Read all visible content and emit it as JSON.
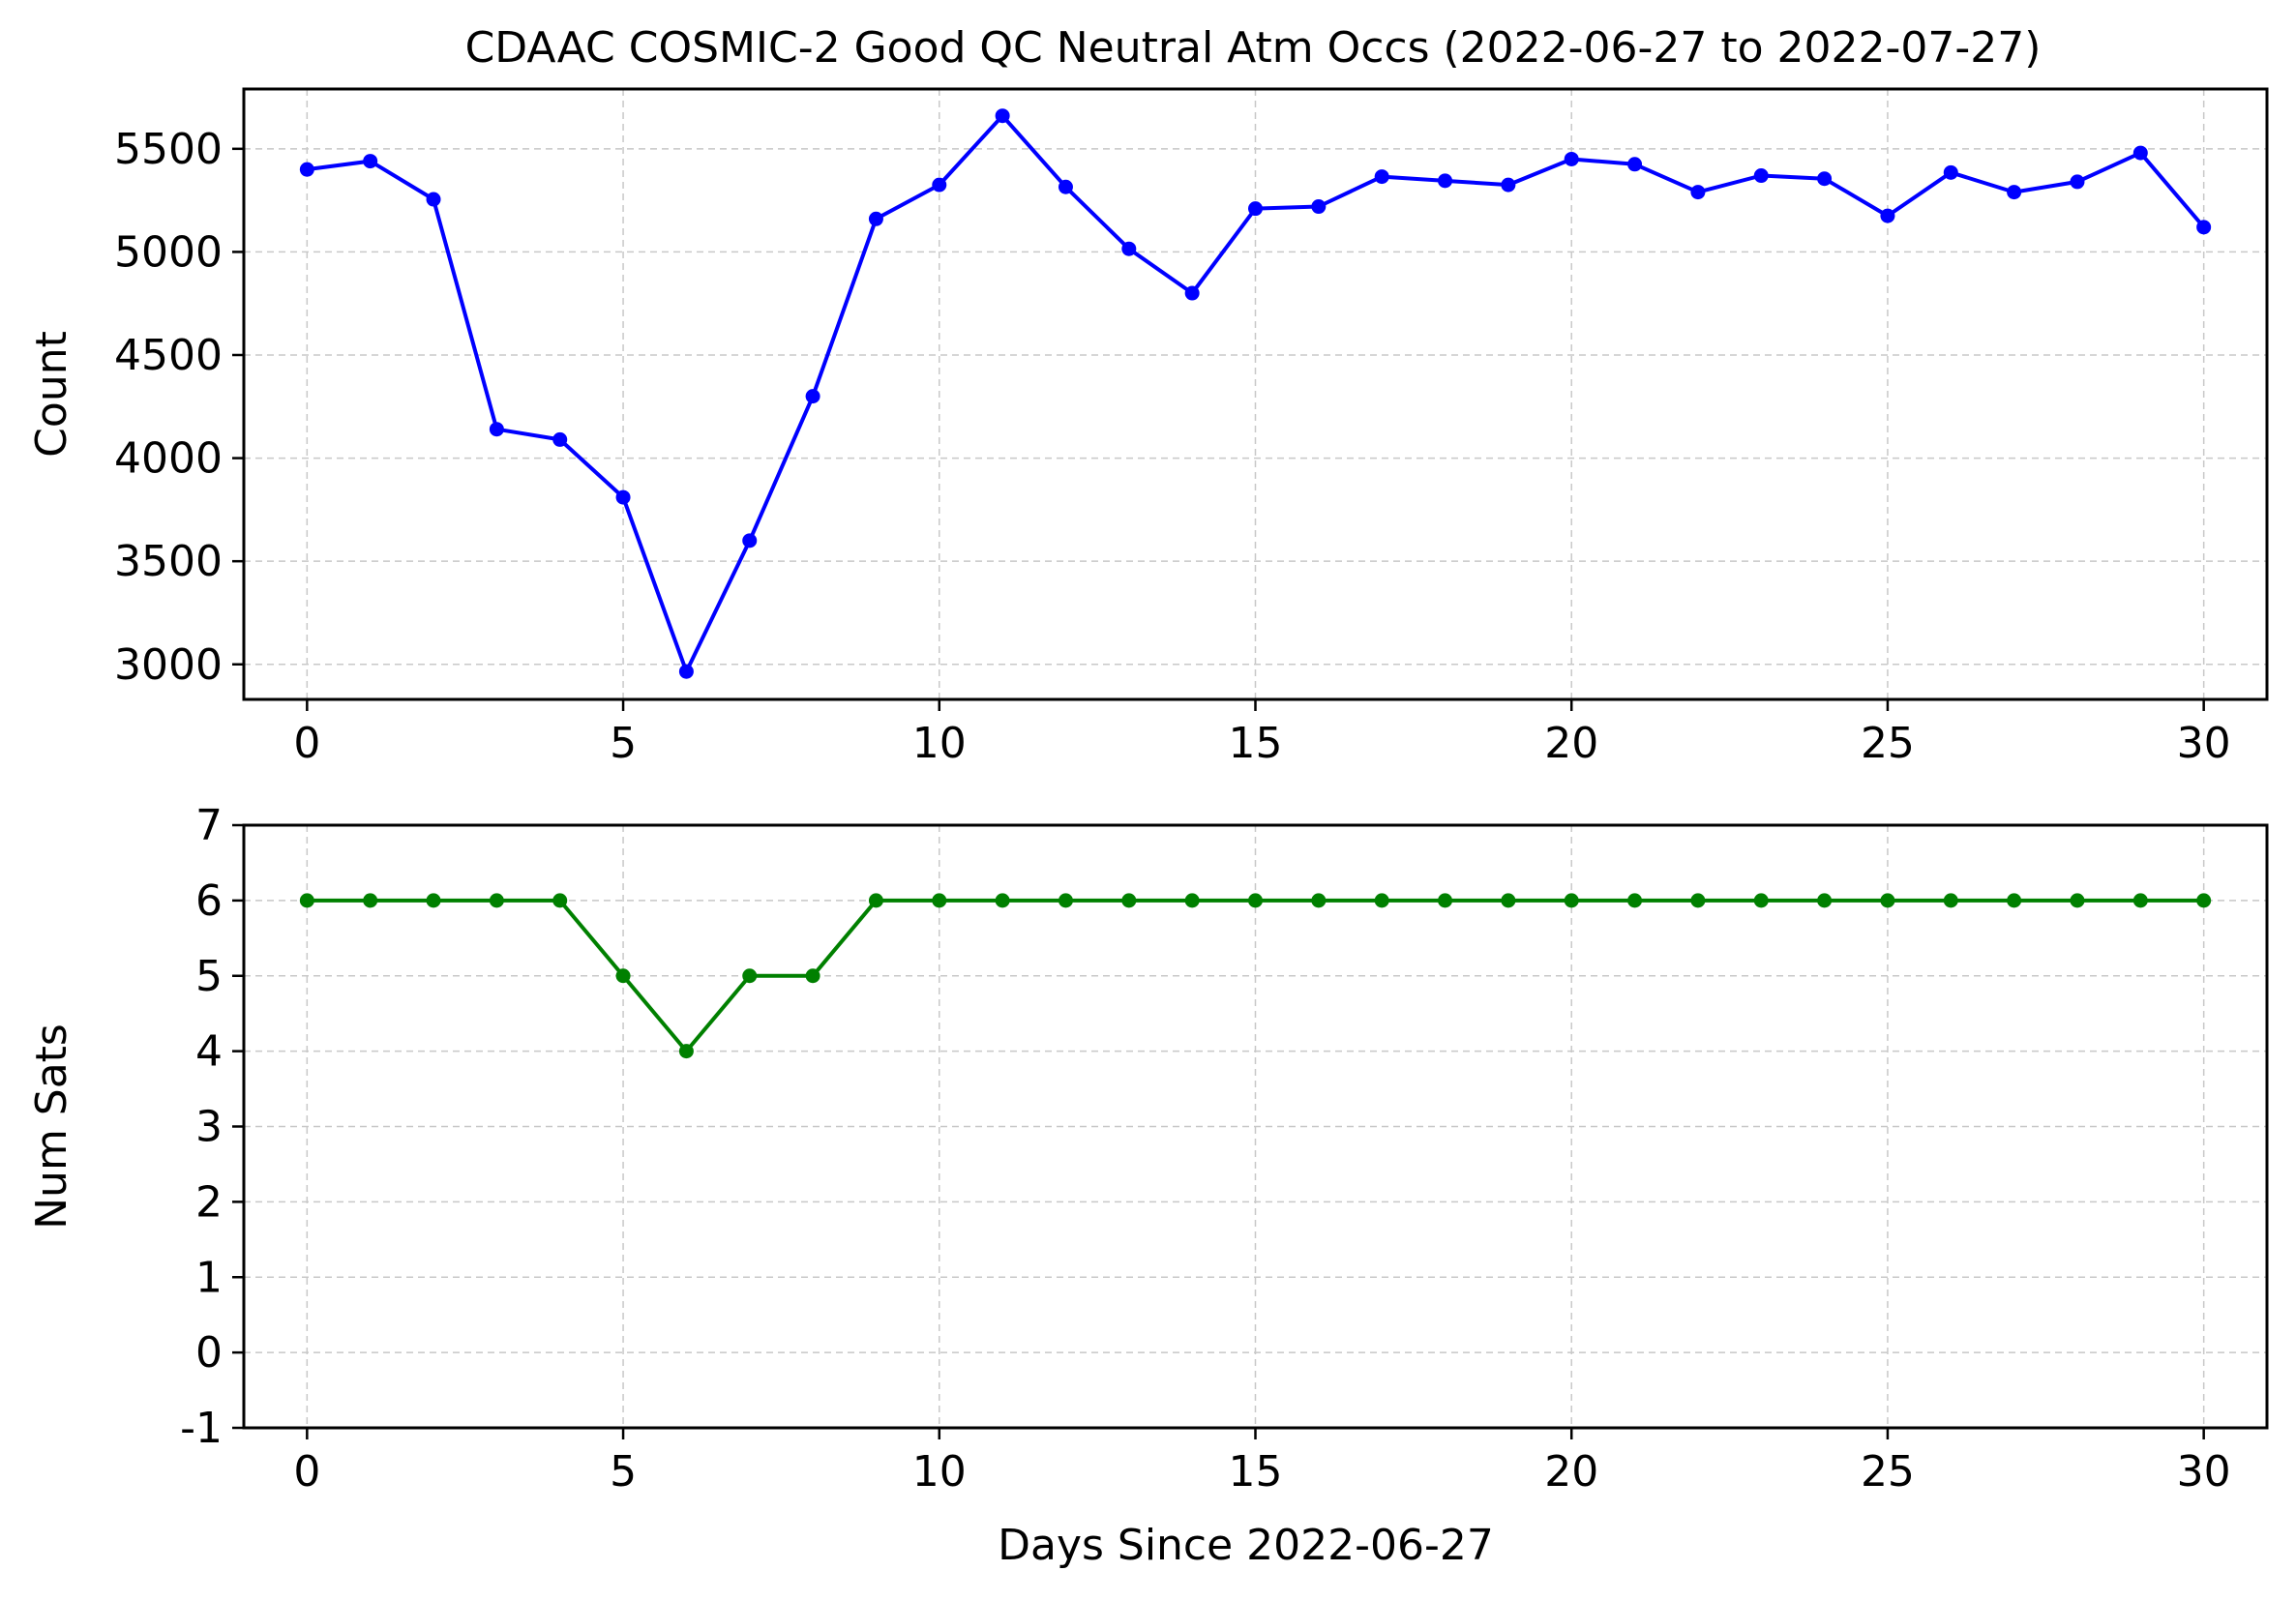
{
  "chart_data": [
    {
      "type": "line",
      "title": "CDAAC COSMIC-2 Good QC Neutral Atm Occs (2022-06-27 to 2022-07-27)",
      "xlabel": "",
      "ylabel": "Count",
      "xlim": [
        -1,
        31
      ],
      "ylim": [
        2830,
        5790
      ],
      "x_ticks": [
        0,
        5,
        10,
        15,
        20,
        25,
        30
      ],
      "y_ticks": [
        3000,
        3500,
        4000,
        4500,
        5000,
        5500
      ],
      "grid": true,
      "color": "#0000ff",
      "marker": "circle",
      "series": [
        {
          "x": [
            0,
            1,
            2,
            3,
            4,
            5,
            6,
            7,
            8,
            9,
            10,
            11,
            12,
            13,
            14,
            15,
            16,
            17,
            18,
            19,
            20,
            21,
            22,
            23,
            24,
            25,
            26,
            27,
            28,
            29,
            30
          ],
          "values": [
            5400,
            5440,
            5255,
            4140,
            4090,
            3810,
            2965,
            3600,
            4300,
            5160,
            5325,
            5660,
            5315,
            5015,
            4800,
            5210,
            5220,
            5365,
            5345,
            5325,
            5450,
            5425,
            5290,
            5370,
            5355,
            5175,
            5385,
            5290,
            5340,
            5480,
            5120
          ]
        }
      ]
    },
    {
      "type": "line",
      "title": "",
      "xlabel": "Days Since 2022-06-27",
      "ylabel": "Num Sats",
      "xlim": [
        -1,
        31
      ],
      "ylim": [
        -1,
        7
      ],
      "x_ticks": [
        0,
        5,
        10,
        15,
        20,
        25,
        30
      ],
      "y_ticks": [
        -1,
        0,
        1,
        2,
        3,
        4,
        5,
        6,
        7
      ],
      "grid": true,
      "color": "#008000",
      "marker": "circle",
      "series": [
        {
          "x": [
            0,
            1,
            2,
            3,
            4,
            5,
            6,
            7,
            8,
            9,
            10,
            11,
            12,
            13,
            14,
            15,
            16,
            17,
            18,
            19,
            20,
            21,
            22,
            23,
            24,
            25,
            26,
            27,
            28,
            29,
            30
          ],
          "values": [
            6,
            6,
            6,
            6,
            6,
            5,
            4,
            5,
            5,
            6,
            6,
            6,
            6,
            6,
            6,
            6,
            6,
            6,
            6,
            6,
            6,
            6,
            6,
            6,
            6,
            6,
            6,
            6,
            6,
            6,
            6
          ]
        }
      ]
    }
  ]
}
